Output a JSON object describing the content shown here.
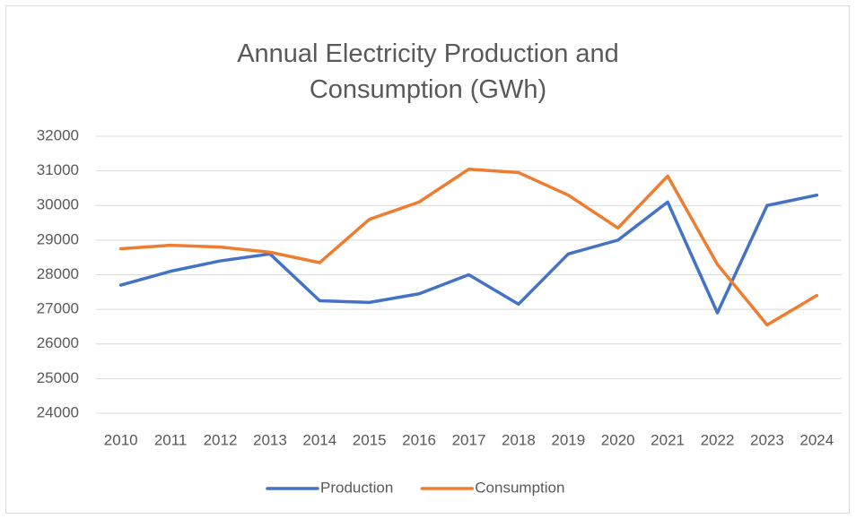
{
  "chart_data": {
    "type": "line",
    "title": "Annual Electricity Production and Consumption (GWh)",
    "categories": [
      "2010",
      "2011",
      "2012",
      "2013",
      "2014",
      "2015",
      "2016",
      "2017",
      "2018",
      "2019",
      "2020",
      "2021",
      "2022",
      "2023",
      "2024"
    ],
    "series": [
      {
        "name": "Production",
        "color": "#4472c4",
        "values": [
          27700,
          28100,
          28400,
          28600,
          27250,
          27200,
          27450,
          28000,
          27150,
          28600,
          29000,
          30100,
          26900,
          30000,
          30300
        ]
      },
      {
        "name": "Consumption",
        "color": "#ed7d31",
        "values": [
          28750,
          28850,
          28800,
          28650,
          28350,
          29600,
          30100,
          31050,
          30950,
          30300,
          29350,
          30850,
          28300,
          26550,
          27400
        ]
      }
    ],
    "ylim": [
      24000,
      32000
    ],
    "yticks": [
      24000,
      25000,
      26000,
      27000,
      28000,
      29000,
      30000,
      31000,
      32000
    ],
    "grid": true,
    "legend": "bottom"
  }
}
